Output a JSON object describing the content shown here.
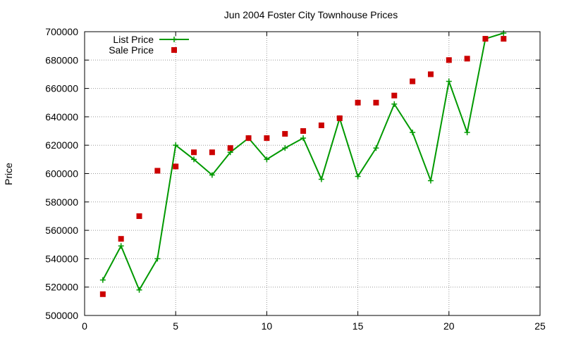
{
  "chart_data": {
    "type": "line",
    "title": "Jun 2004 Foster City Townhouse Prices",
    "xlabel": "",
    "ylabel": "Price",
    "xlim": [
      0,
      25
    ],
    "ylim": [
      500000,
      700000
    ],
    "x_ticks": [
      0,
      5,
      10,
      15,
      20,
      25
    ],
    "y_ticks": [
      500000,
      520000,
      540000,
      560000,
      580000,
      600000,
      620000,
      640000,
      660000,
      680000,
      700000
    ],
    "grid": true,
    "legend_position": "top-left",
    "series": [
      {
        "name": "List Price",
        "style": "line+cross",
        "color": "#009900",
        "x": [
          1,
          2,
          3,
          4,
          5,
          6,
          7,
          8,
          9,
          10,
          11,
          12,
          13,
          14,
          15,
          16,
          17,
          18,
          19,
          20,
          21,
          22,
          23
        ],
        "values": [
          525000,
          549000,
          518000,
          540000,
          620000,
          610000,
          599000,
          615000,
          625000,
          610000,
          618000,
          625000,
          596000,
          639000,
          598000,
          618000,
          649000,
          629000,
          595000,
          665000,
          629000,
          695000,
          699000
        ]
      },
      {
        "name": "Sale Price",
        "style": "points-square",
        "color": "#cc0000",
        "x": [
          1,
          2,
          3,
          4,
          5,
          6,
          7,
          8,
          9,
          10,
          11,
          12,
          13,
          14,
          15,
          16,
          17,
          18,
          19,
          20,
          21,
          22,
          23
        ],
        "values": [
          515000,
          554000,
          570000,
          602000,
          605000,
          615000,
          615000,
          618000,
          625000,
          625000,
          628000,
          630000,
          634000,
          639000,
          650000,
          650000,
          655000,
          665000,
          670000,
          680000,
          681000,
          695000,
          695000
        ]
      }
    ]
  }
}
